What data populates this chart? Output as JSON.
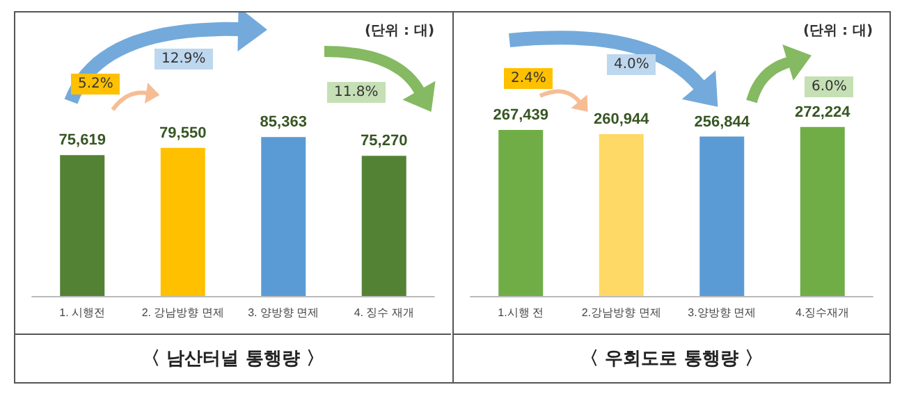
{
  "chart_data": [
    {
      "type": "bar",
      "title": "〈 남산터널 통행량 〉",
      "categories": [
        "1. 시행전",
        "2. 강남방향 면제",
        "3. 양방향 면제",
        "4. 징수 재개"
      ],
      "values": [
        75619,
        79550,
        85363,
        75270
      ],
      "colors": [
        "#548235",
        "#ffc000",
        "#5b9bd5",
        "#548235"
      ],
      "tick_labels": "x",
      "value_labels": [
        "75,619",
        "79,550",
        "85,363",
        "75,270"
      ],
      "grid": false,
      "annotations": [
        "(단위 : 대)",
        "5.2%",
        "12.9%",
        "11.8%"
      ]
    },
    {
      "type": "bar",
      "title": "〈 우회도로 통행량 〉",
      "categories": [
        "1.시행 전",
        "2.강남방향 면제",
        "3.양방향 면제",
        "4.징수재개"
      ],
      "values": [
        267439,
        260944,
        256844,
        272224
      ],
      "colors": [
        "#70ad47",
        "#ffd966",
        "#5b9bd5",
        "#70ad47"
      ],
      "tick_labels": "x",
      "value_labels": [
        "267,439",
        "260,944",
        "256,844",
        "272,224"
      ],
      "grid": false,
      "annotations": [
        "(단위 : 대)",
        "2.4%",
        "4.0%",
        "6.0%"
      ]
    }
  ]
}
